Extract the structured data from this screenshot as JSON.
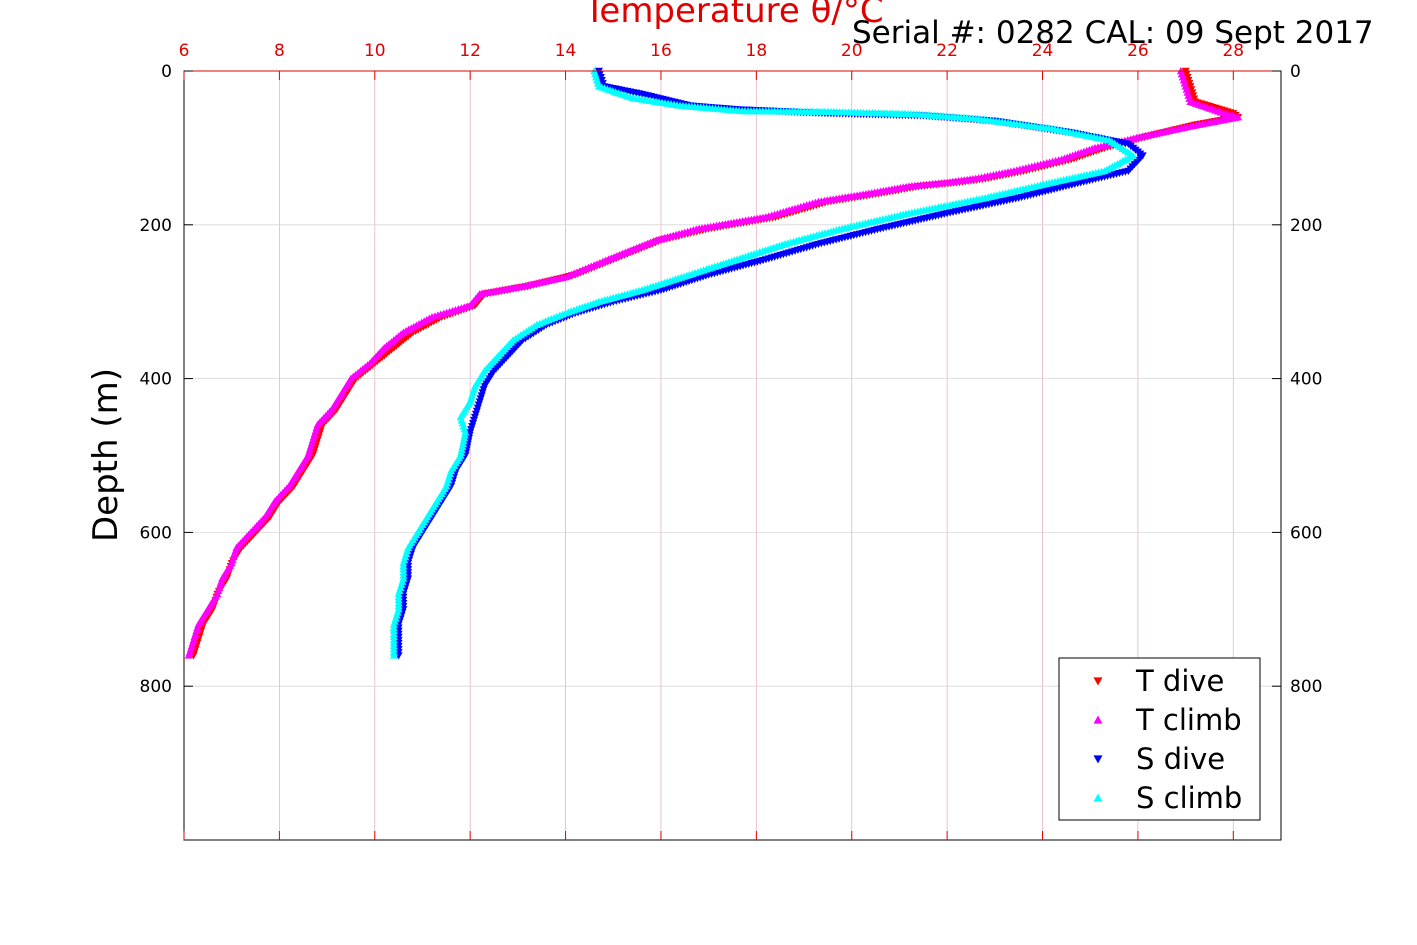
{
  "header": {
    "top_axis_title": "Temperature θ/°C",
    "serial_caption": "Serial #: 0282  CAL: 09 Sept 2017"
  },
  "colors": {
    "top_axis": "#e00000",
    "t_dive": "#ff0000",
    "t_climb": "#ff00ff",
    "s_dive": "#0000ff",
    "s_climb": "#00ffff",
    "grid_top": "#e8b4c4",
    "grid_left": "#d8d8d8"
  },
  "chart_data": {
    "type": "scatter",
    "xlabel_top": "Temperature θ/°C",
    "ylabel": "Depth (m)",
    "x_top_range": [
      6,
      29
    ],
    "x_top_ticks": [
      "6",
      "8",
      "10",
      "12",
      "14",
      "16",
      "18",
      "20",
      "22",
      "24",
      "26",
      "28"
    ],
    "y_range": [
      0,
      1000
    ],
    "y_reversed": true,
    "y_ticks_left": [
      "0",
      "200",
      "400",
      "600",
      "800"
    ],
    "y_ticks_right": [
      "0",
      "200",
      "400",
      "600",
      "800"
    ],
    "grid": true,
    "legend_position": "bottom-right",
    "series": [
      {
        "name": "T dive",
        "marker": "triangle-down",
        "points": [
          [
            27.0,
            0
          ],
          [
            27.1,
            20
          ],
          [
            27.2,
            40
          ],
          [
            28.0,
            55
          ],
          [
            28.1,
            60
          ],
          [
            27.2,
            70
          ],
          [
            26.2,
            85
          ],
          [
            25.3,
            100
          ],
          [
            24.6,
            115
          ],
          [
            23.6,
            130
          ],
          [
            22.8,
            140
          ],
          [
            22.2,
            145
          ],
          [
            21.4,
            150
          ],
          [
            20.5,
            160
          ],
          [
            19.5,
            170
          ],
          [
            18.4,
            190
          ],
          [
            17.0,
            205
          ],
          [
            16.0,
            220
          ],
          [
            15.0,
            245
          ],
          [
            14.2,
            265
          ],
          [
            13.2,
            280
          ],
          [
            12.3,
            290
          ],
          [
            12.1,
            305
          ],
          [
            11.4,
            320
          ],
          [
            10.8,
            340
          ],
          [
            10.4,
            360
          ],
          [
            10.0,
            380
          ],
          [
            9.6,
            400
          ],
          [
            9.4,
            420
          ],
          [
            9.2,
            440
          ],
          [
            8.9,
            460
          ],
          [
            8.8,
            480
          ],
          [
            8.7,
            500
          ],
          [
            8.5,
            520
          ],
          [
            8.3,
            540
          ],
          [
            8.0,
            560
          ],
          [
            7.8,
            580
          ],
          [
            7.5,
            600
          ],
          [
            7.2,
            620
          ],
          [
            7.0,
            640
          ],
          [
            6.9,
            660
          ],
          [
            6.7,
            680
          ],
          [
            6.6,
            700
          ],
          [
            6.4,
            720
          ],
          [
            6.3,
            740
          ],
          [
            6.2,
            760
          ]
        ]
      },
      {
        "name": "T climb",
        "marker": "triangle-up",
        "points": [
          [
            26.9,
            0
          ],
          [
            27.0,
            20
          ],
          [
            27.1,
            40
          ],
          [
            27.8,
            55
          ],
          [
            28.1,
            60
          ],
          [
            27.1,
            72
          ],
          [
            26.1,
            85
          ],
          [
            25.1,
            100
          ],
          [
            24.4,
            115
          ],
          [
            23.4,
            130
          ],
          [
            22.6,
            140
          ],
          [
            22.0,
            145
          ],
          [
            21.2,
            150
          ],
          [
            20.3,
            160
          ],
          [
            19.3,
            170
          ],
          [
            18.2,
            190
          ],
          [
            16.8,
            205
          ],
          [
            15.9,
            220
          ],
          [
            14.9,
            245
          ],
          [
            14.0,
            268
          ],
          [
            13.1,
            280
          ],
          [
            12.2,
            290
          ],
          [
            12.0,
            305
          ],
          [
            11.2,
            320
          ],
          [
            10.6,
            340
          ],
          [
            10.2,
            360
          ],
          [
            9.9,
            380
          ],
          [
            9.5,
            400
          ],
          [
            9.3,
            420
          ],
          [
            9.1,
            440
          ],
          [
            8.8,
            460
          ],
          [
            8.7,
            480
          ],
          [
            8.6,
            500
          ],
          [
            8.4,
            520
          ],
          [
            8.2,
            540
          ],
          [
            7.9,
            560
          ],
          [
            7.7,
            580
          ],
          [
            7.4,
            600
          ],
          [
            7.1,
            620
          ],
          [
            7.0,
            640
          ],
          [
            6.8,
            660
          ],
          [
            6.7,
            680
          ],
          [
            6.5,
            700
          ],
          [
            6.3,
            720
          ],
          [
            6.2,
            740
          ],
          [
            6.1,
            760
          ]
        ]
      },
      {
        "name": "S dive",
        "marker": "triangle-down",
        "points": [
          [
            14.7,
            0
          ],
          [
            14.8,
            20
          ],
          [
            15.6,
            30
          ],
          [
            16.6,
            45
          ],
          [
            17.6,
            50
          ],
          [
            19.5,
            55
          ],
          [
            21.5,
            58
          ],
          [
            23.0,
            65
          ],
          [
            24.6,
            80
          ],
          [
            25.8,
            95
          ],
          [
            26.1,
            110
          ],
          [
            25.8,
            130
          ],
          [
            24.8,
            145
          ],
          [
            23.5,
            165
          ],
          [
            22.0,
            185
          ],
          [
            20.6,
            205
          ],
          [
            19.3,
            225
          ],
          [
            18.2,
            245
          ],
          [
            17.0,
            265
          ],
          [
            16.0,
            285
          ],
          [
            15.0,
            300
          ],
          [
            14.2,
            315
          ],
          [
            13.6,
            330
          ],
          [
            13.1,
            350
          ],
          [
            12.8,
            370
          ],
          [
            12.5,
            390
          ],
          [
            12.3,
            410
          ],
          [
            12.2,
            430
          ],
          [
            12.1,
            450
          ],
          [
            12.0,
            470
          ],
          [
            11.9,
            500
          ],
          [
            11.7,
            520
          ],
          [
            11.6,
            540
          ],
          [
            11.4,
            560
          ],
          [
            11.2,
            580
          ],
          [
            11.0,
            600
          ],
          [
            10.8,
            620
          ],
          [
            10.7,
            640
          ],
          [
            10.7,
            660
          ],
          [
            10.6,
            680
          ],
          [
            10.6,
            700
          ],
          [
            10.5,
            720
          ],
          [
            10.5,
            740
          ],
          [
            10.5,
            760
          ]
        ]
      },
      {
        "name": "S climb",
        "marker": "triangle-up",
        "points": [
          [
            14.6,
            0
          ],
          [
            14.7,
            20
          ],
          [
            15.4,
            35
          ],
          [
            16.4,
            45
          ],
          [
            17.7,
            52
          ],
          [
            19.5,
            53
          ],
          [
            21.3,
            56
          ],
          [
            22.6,
            62
          ],
          [
            24.2,
            75
          ],
          [
            25.4,
            90
          ],
          [
            25.9,
            110
          ],
          [
            25.3,
            130
          ],
          [
            24.2,
            145
          ],
          [
            22.8,
            165
          ],
          [
            21.2,
            185
          ],
          [
            19.8,
            205
          ],
          [
            18.6,
            225
          ],
          [
            17.6,
            245
          ],
          [
            16.6,
            265
          ],
          [
            15.6,
            285
          ],
          [
            14.7,
            300
          ],
          [
            14.0,
            315
          ],
          [
            13.4,
            330
          ],
          [
            12.9,
            350
          ],
          [
            12.6,
            370
          ],
          [
            12.3,
            390
          ],
          [
            12.1,
            410
          ],
          [
            12.0,
            430
          ],
          [
            11.8,
            450
          ],
          [
            11.9,
            470
          ],
          [
            11.8,
            500
          ],
          [
            11.6,
            520
          ],
          [
            11.5,
            540
          ],
          [
            11.3,
            560
          ],
          [
            11.1,
            580
          ],
          [
            10.9,
            600
          ],
          [
            10.7,
            620
          ],
          [
            10.6,
            640
          ],
          [
            10.6,
            660
          ],
          [
            10.5,
            680
          ],
          [
            10.5,
            700
          ],
          [
            10.4,
            720
          ],
          [
            10.4,
            740
          ],
          [
            10.4,
            760
          ]
        ]
      }
    ]
  }
}
